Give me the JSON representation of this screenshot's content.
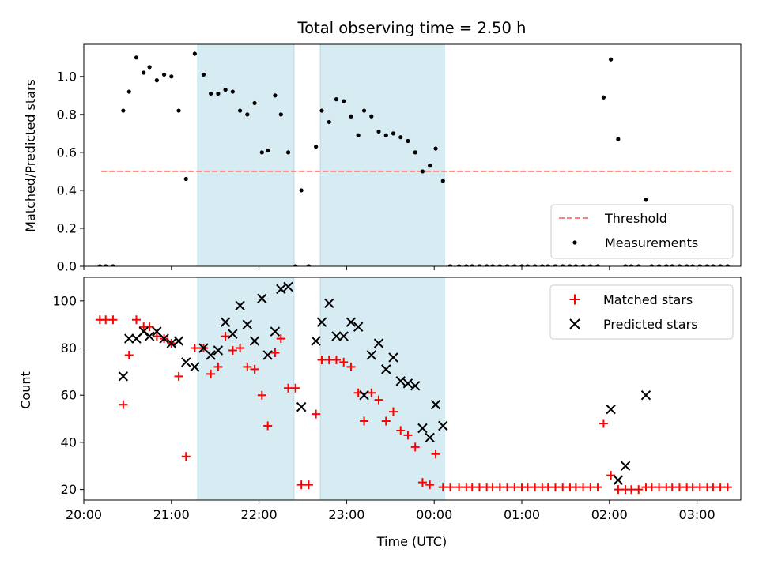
{
  "chart_data": [
    {
      "type": "scatter",
      "title": "Total observing time = 2.50 h",
      "xlabel": "",
      "ylabel": "Matched/Predicted stars",
      "xlim": [
        "20:00",
        "03:30"
      ],
      "ylim": [
        0,
        1.17
      ],
      "xticks": [
        "20:00",
        "21:00",
        "22:00",
        "23:00",
        "00:00",
        "01:00",
        "02:00",
        "03:00"
      ],
      "yticks": [
        "0.0",
        "0.2",
        "0.4",
        "0.6",
        "0.8",
        "1.0"
      ],
      "shaded_intervals": [
        [
          "21:18",
          "22:24"
        ],
        [
          "22:42",
          "00:07"
        ]
      ],
      "legend_position": "lower-right",
      "series": [
        {
          "name": "Threshold",
          "style": "dashed-line",
          "color": "#ff7f7f",
          "x": [
            "20:12",
            "03:24"
          ],
          "y": [
            0.5,
            0.5
          ]
        },
        {
          "name": "Measurements",
          "style": "point",
          "color": "#000000",
          "x": [
            "20:11",
            "20:15",
            "20:20",
            "20:27",
            "20:31",
            "20:36",
            "20:41",
            "20:45",
            "20:50",
            "20:55",
            "21:00",
            "21:05",
            "21:10",
            "21:16",
            "21:22",
            "21:27",
            "21:32",
            "21:37",
            "21:42",
            "21:47",
            "21:52",
            "21:57",
            "22:02",
            "22:06",
            "22:11",
            "22:15",
            "22:20",
            "22:25",
            "22:29",
            "22:34",
            "22:39",
            "22:43",
            "22:48",
            "22:53",
            "22:58",
            "23:03",
            "23:08",
            "23:12",
            "23:17",
            "23:22",
            "23:27",
            "23:32",
            "23:37",
            "23:42",
            "23:47",
            "23:52",
            "23:57",
            "00:01",
            "00:06",
            "00:11",
            "00:17",
            "00:22",
            "00:26",
            "00:31",
            "00:36",
            "00:40",
            "00:45",
            "00:50",
            "00:55",
            "01:00",
            "01:04",
            "01:09",
            "01:14",
            "01:18",
            "01:23",
            "01:28",
            "01:33",
            "01:37",
            "01:42",
            "01:47",
            "01:52",
            "01:56",
            "02:01",
            "02:06",
            "02:11",
            "02:15",
            "02:20",
            "02:25",
            "02:29",
            "02:34",
            "02:39",
            "02:43",
            "02:48",
            "02:53",
            "02:57",
            "03:02",
            "03:07",
            "03:11",
            "03:16",
            "03:21"
          ],
          "y": [
            0.0,
            0.0,
            0.0,
            0.82,
            0.92,
            1.1,
            1.02,
            1.05,
            0.98,
            1.01,
            1.0,
            0.82,
            0.46,
            1.12,
            1.01,
            0.91,
            0.91,
            0.93,
            0.92,
            0.82,
            0.8,
            0.86,
            0.6,
            0.61,
            0.9,
            0.8,
            0.6,
            0.0,
            0.4,
            0.0,
            0.63,
            0.82,
            0.76,
            0.88,
            0.87,
            0.79,
            0.69,
            0.82,
            0.79,
            0.71,
            0.69,
            0.7,
            0.68,
            0.66,
            0.6,
            0.5,
            0.53,
            0.62,
            0.45,
            0.0,
            0.0,
            0.0,
            0.0,
            0.0,
            0.0,
            0.0,
            0.0,
            0.0,
            0.0,
            0.0,
            0.0,
            0.0,
            0.0,
            0.0,
            0.0,
            0.0,
            0.0,
            0.0,
            0.0,
            0.0,
            0.0,
            0.89,
            1.09,
            0.67,
            0.0,
            0.0,
            0.0,
            0.35,
            0.0,
            0.0,
            0.0,
            0.0,
            0.0,
            0.0,
            0.0,
            0.0,
            0.0,
            0.0,
            0.0,
            0.0
          ]
        }
      ]
    },
    {
      "type": "scatter",
      "title": "",
      "xlabel": "Time (UTC)",
      "ylabel": "Count",
      "xlim": [
        "20:00",
        "03:30"
      ],
      "ylim": [
        15.5,
        110
      ],
      "xticks": [
        "20:00",
        "21:00",
        "22:00",
        "23:00",
        "00:00",
        "01:00",
        "02:00",
        "03:00"
      ],
      "yticks": [
        "20",
        "40",
        "60",
        "80",
        "100"
      ],
      "shaded_intervals": [
        [
          "21:18",
          "22:24"
        ],
        [
          "22:42",
          "00:07"
        ]
      ],
      "legend_position": "upper-right",
      "series": [
        {
          "name": "Matched stars",
          "style": "plus",
          "color": "#ff0000",
          "x": [
            "20:11",
            "20:15",
            "20:20",
            "20:27",
            "20:31",
            "20:36",
            "20:41",
            "20:45",
            "20:50",
            "20:55",
            "21:00",
            "21:05",
            "21:10",
            "21:16",
            "21:22",
            "21:27",
            "21:32",
            "21:37",
            "21:42",
            "21:47",
            "21:52",
            "21:57",
            "22:02",
            "22:06",
            "22:11",
            "22:15",
            "22:20",
            "22:25",
            "22:29",
            "22:34",
            "22:39",
            "22:43",
            "22:48",
            "22:53",
            "22:58",
            "23:03",
            "23:08",
            "23:12",
            "23:17",
            "23:22",
            "23:27",
            "23:32",
            "23:37",
            "23:42",
            "23:47",
            "23:52",
            "23:57",
            "00:01",
            "00:06",
            "00:11",
            "00:17",
            "00:22",
            "00:26",
            "00:31",
            "00:36",
            "00:40",
            "00:45",
            "00:50",
            "00:55",
            "01:00",
            "01:04",
            "01:09",
            "01:14",
            "01:18",
            "01:23",
            "01:28",
            "01:33",
            "01:37",
            "01:42",
            "01:47",
            "01:52",
            "01:56",
            "02:01",
            "02:06",
            "02:11",
            "02:15",
            "02:20",
            "02:25",
            "02:29",
            "02:34",
            "02:39",
            "02:43",
            "02:48",
            "02:53",
            "02:57",
            "03:02",
            "03:07",
            "03:11",
            "03:16",
            "03:21"
          ],
          "y": [
            92,
            92,
            92,
            56,
            77,
            92,
            89,
            89,
            85,
            84,
            82,
            68,
            34,
            80,
            80,
            69,
            72,
            85,
            79,
            80,
            72,
            71,
            60,
            47,
            78,
            84,
            63,
            63,
            22,
            22,
            52,
            75,
            75,
            75,
            74,
            72,
            61,
            49,
            61,
            58,
            49,
            53,
            45,
            43,
            38,
            23,
            22,
            35,
            21,
            21,
            21,
            21,
            21,
            21,
            21,
            21,
            21,
            21,
            21,
            21,
            21,
            21,
            21,
            21,
            21,
            21,
            21,
            21,
            21,
            21,
            21,
            48,
            26,
            20,
            20,
            20,
            20,
            21,
            21,
            21,
            21,
            21,
            21,
            21,
            21,
            21,
            21,
            21,
            21,
            21
          ]
        },
        {
          "name": "Predicted stars",
          "style": "x",
          "color": "#000000",
          "x": [
            "20:27",
            "20:31",
            "20:36",
            "20:41",
            "20:45",
            "20:50",
            "20:55",
            "21:00",
            "21:05",
            "21:10",
            "21:16",
            "21:22",
            "21:27",
            "21:32",
            "21:37",
            "21:42",
            "21:47",
            "21:52",
            "21:57",
            "22:02",
            "22:06",
            "22:11",
            "22:15",
            "22:20",
            "22:29",
            "22:39",
            "22:43",
            "22:48",
            "22:53",
            "22:58",
            "23:03",
            "23:08",
            "23:12",
            "23:17",
            "23:22",
            "23:27",
            "23:32",
            "23:37",
            "23:42",
            "23:47",
            "23:52",
            "23:57",
            "00:01",
            "00:06",
            "02:01",
            "02:06",
            "02:11",
            "02:25"
          ],
          "y": [
            68,
            84,
            84,
            87,
            85,
            87,
            84,
            82,
            83,
            74,
            72,
            80,
            77,
            79,
            91,
            86,
            98,
            90,
            83,
            101,
            77,
            87,
            105,
            106,
            55,
            83,
            91,
            99,
            85,
            85,
            91,
            89,
            60,
            77,
            82,
            71,
            76,
            66,
            65,
            64,
            46,
            42,
            56,
            47,
            54,
            24,
            30,
            60
          ]
        }
      ]
    }
  ]
}
